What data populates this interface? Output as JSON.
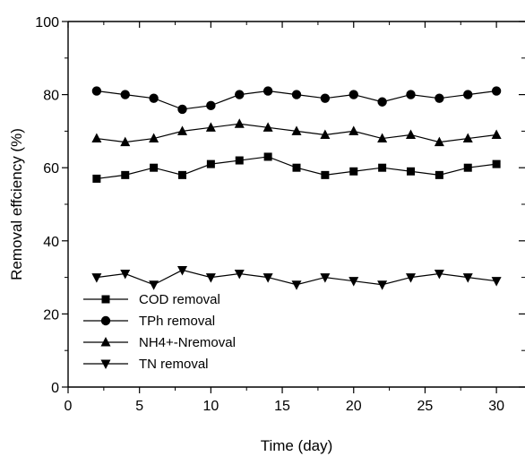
{
  "chart_data": {
    "type": "line",
    "xlabel": "Time (day)",
    "ylabel": "Removal effciency (%)",
    "xlim": [
      0,
      32
    ],
    "ylim": [
      0,
      100
    ],
    "x_ticks": [
      0,
      5,
      10,
      15,
      20,
      25,
      30
    ],
    "y_ticks": [
      0,
      20,
      40,
      60,
      80,
      100
    ],
    "grid": false,
    "legend_position": "bottom-left",
    "x": [
      2,
      4,
      6,
      8,
      10,
      12,
      14,
      16,
      18,
      20,
      22,
      24,
      26,
      28,
      30
    ],
    "series": [
      {
        "name": "COD removal",
        "marker": "square",
        "values": [
          57,
          58,
          60,
          58,
          61,
          62,
          63,
          60,
          58,
          59,
          60,
          59,
          58,
          60,
          61
        ]
      },
      {
        "name": "TPh removal",
        "marker": "circle",
        "values": [
          81,
          80,
          79,
          76,
          77,
          80,
          81,
          80,
          79,
          80,
          78,
          80,
          79,
          80,
          81
        ]
      },
      {
        "name": "NH4+-Nremoval",
        "marker": "triangle-up",
        "values": [
          68,
          67,
          68,
          70,
          71,
          72,
          71,
          70,
          69,
          70,
          68,
          69,
          67,
          68,
          69
        ]
      },
      {
        "name": "TN  removal",
        "marker": "triangle-down",
        "values": [
          30,
          31,
          28,
          32,
          30,
          31,
          30,
          28,
          30,
          29,
          28,
          30,
          31,
          30,
          29
        ]
      }
    ]
  }
}
